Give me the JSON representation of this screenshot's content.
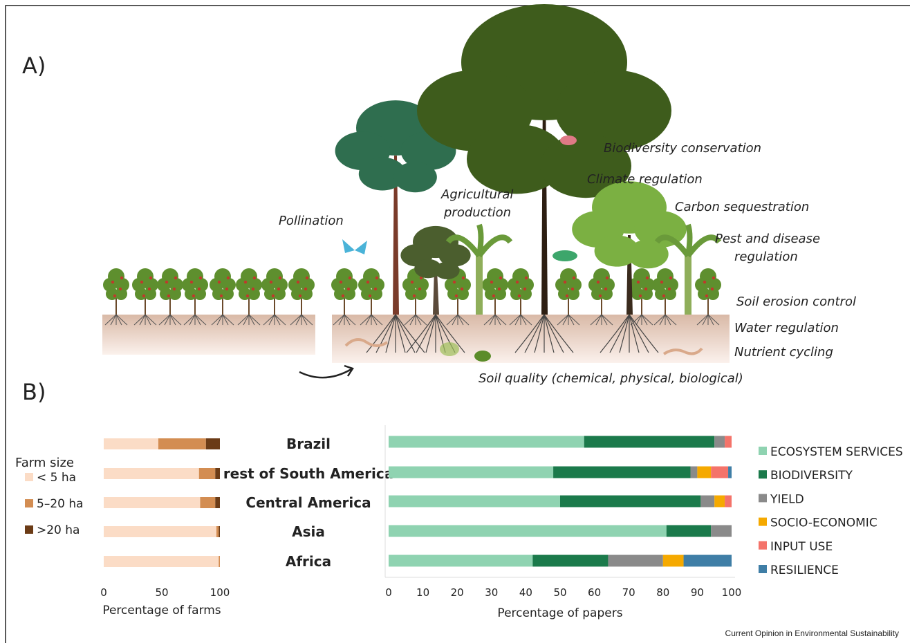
{
  "panels": [
    "A)",
    "B)"
  ],
  "illustration": {
    "labels": [
      "Pollination",
      "Agricultural",
      "production",
      "Biodiversity conservation",
      "Climate regulation",
      "Carbon sequestration",
      "Pest and disease",
      "regulation",
      "Soil erosion control",
      "Water regulation",
      "Nutrient cycling",
      "Soil quality (chemical, physical, biological)"
    ]
  },
  "footer": "Current Opinion in Environmental Sustainability",
  "chart_data": [
    {
      "type": "bar",
      "orientation": "horizontal",
      "stacked": true,
      "categories": [
        "Brazil",
        "rest of South America",
        "Central America",
        "Asia",
        "Africa"
      ],
      "legend_title": "Farm size",
      "legend": "left",
      "series": [
        {
          "name": "< 5 ha",
          "color": "#fbdcc6",
          "values": [
            47,
            82,
            83,
            97,
            99
          ]
        },
        {
          "name": "5–20 ha",
          "color": "#d38d52",
          "values": [
            41,
            14,
            13,
            2,
            1
          ]
        },
        {
          "name": ">20 ha",
          "color": "#6b3b16",
          "values": [
            12,
            4,
            4,
            1,
            0
          ]
        }
      ],
      "xlim": [
        0,
        100
      ],
      "xticks": [
        0,
        50,
        100
      ],
      "xlabel": "Percentage of farms"
    },
    {
      "type": "bar",
      "orientation": "horizontal",
      "stacked": true,
      "legend": "right",
      "series": [
        {
          "name": "ECOSYSTEM SERVICES",
          "color": "#8fd3b1",
          "values": [
            57,
            48,
            50,
            81,
            42
          ]
        },
        {
          "name": "BIODIVERSITY",
          "color": "#1b7a4b",
          "values": [
            38,
            40,
            41,
            13,
            22
          ]
        },
        {
          "name": "YIELD",
          "color": "#8a8a8a",
          "values": [
            3,
            2,
            4,
            6,
            16
          ]
        },
        {
          "name": "SOCIO-ECONOMIC",
          "color": "#f5a900",
          "values": [
            0,
            4,
            3,
            0,
            6
          ]
        },
        {
          "name": "INPUT USE",
          "color": "#f4736a",
          "values": [
            2,
            5,
            2,
            0,
            0
          ]
        },
        {
          "name": "RESILIENCE",
          "color": "#3f7ea6",
          "values": [
            0,
            1,
            0,
            0,
            14
          ]
        }
      ],
      "xlim": [
        0,
        100
      ],
      "xticks": [
        0,
        10,
        20,
        30,
        40,
        50,
        60,
        70,
        80,
        90,
        100
      ],
      "xlabel": "Percentage of papers"
    }
  ]
}
